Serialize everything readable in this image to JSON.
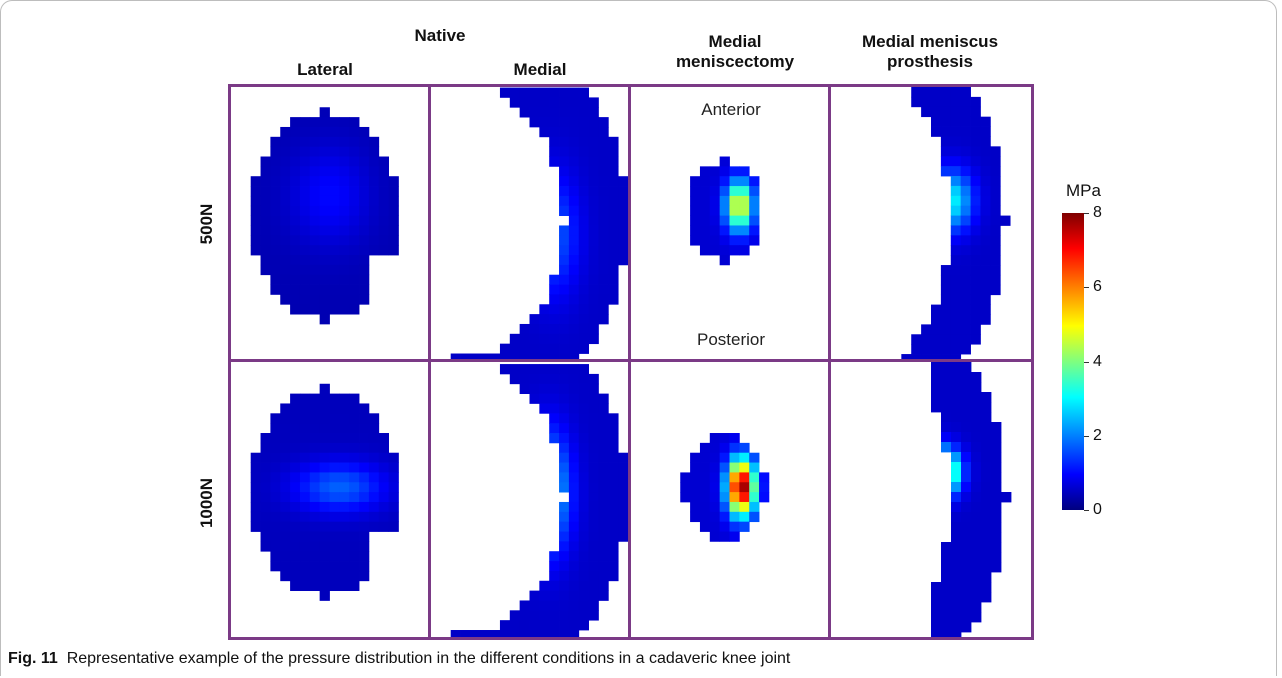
{
  "header": {
    "group_native": "Native",
    "col_lateral": "Lateral",
    "col_medial": "Medial",
    "col_meniscectomy_line1": "Medial",
    "col_meniscectomy_line2": "meniscectomy",
    "col_prosthesis_line1": "Medial meniscus",
    "col_prosthesis_line2": "prosthesis"
  },
  "rows": {
    "row1": "500N",
    "row2": "1000N"
  },
  "annotations": {
    "anterior": "Anterior",
    "posterior": "Posterior"
  },
  "colorbar": {
    "unit": "MPa",
    "ticks": [
      "8",
      "6",
      "4",
      "2",
      "0"
    ],
    "min": 0,
    "max": 8,
    "colors": [
      "#00007f",
      "#0000ff",
      "#0080ff",
      "#00ffff",
      "#7fff7f",
      "#ffff00",
      "#ff8000",
      "#ff0000",
      "#7f0000"
    ]
  },
  "caption": {
    "label": "Fig. 11",
    "text": "Representative example of the pressure distribution in the different conditions in a cadaveric knee joint"
  }
}
